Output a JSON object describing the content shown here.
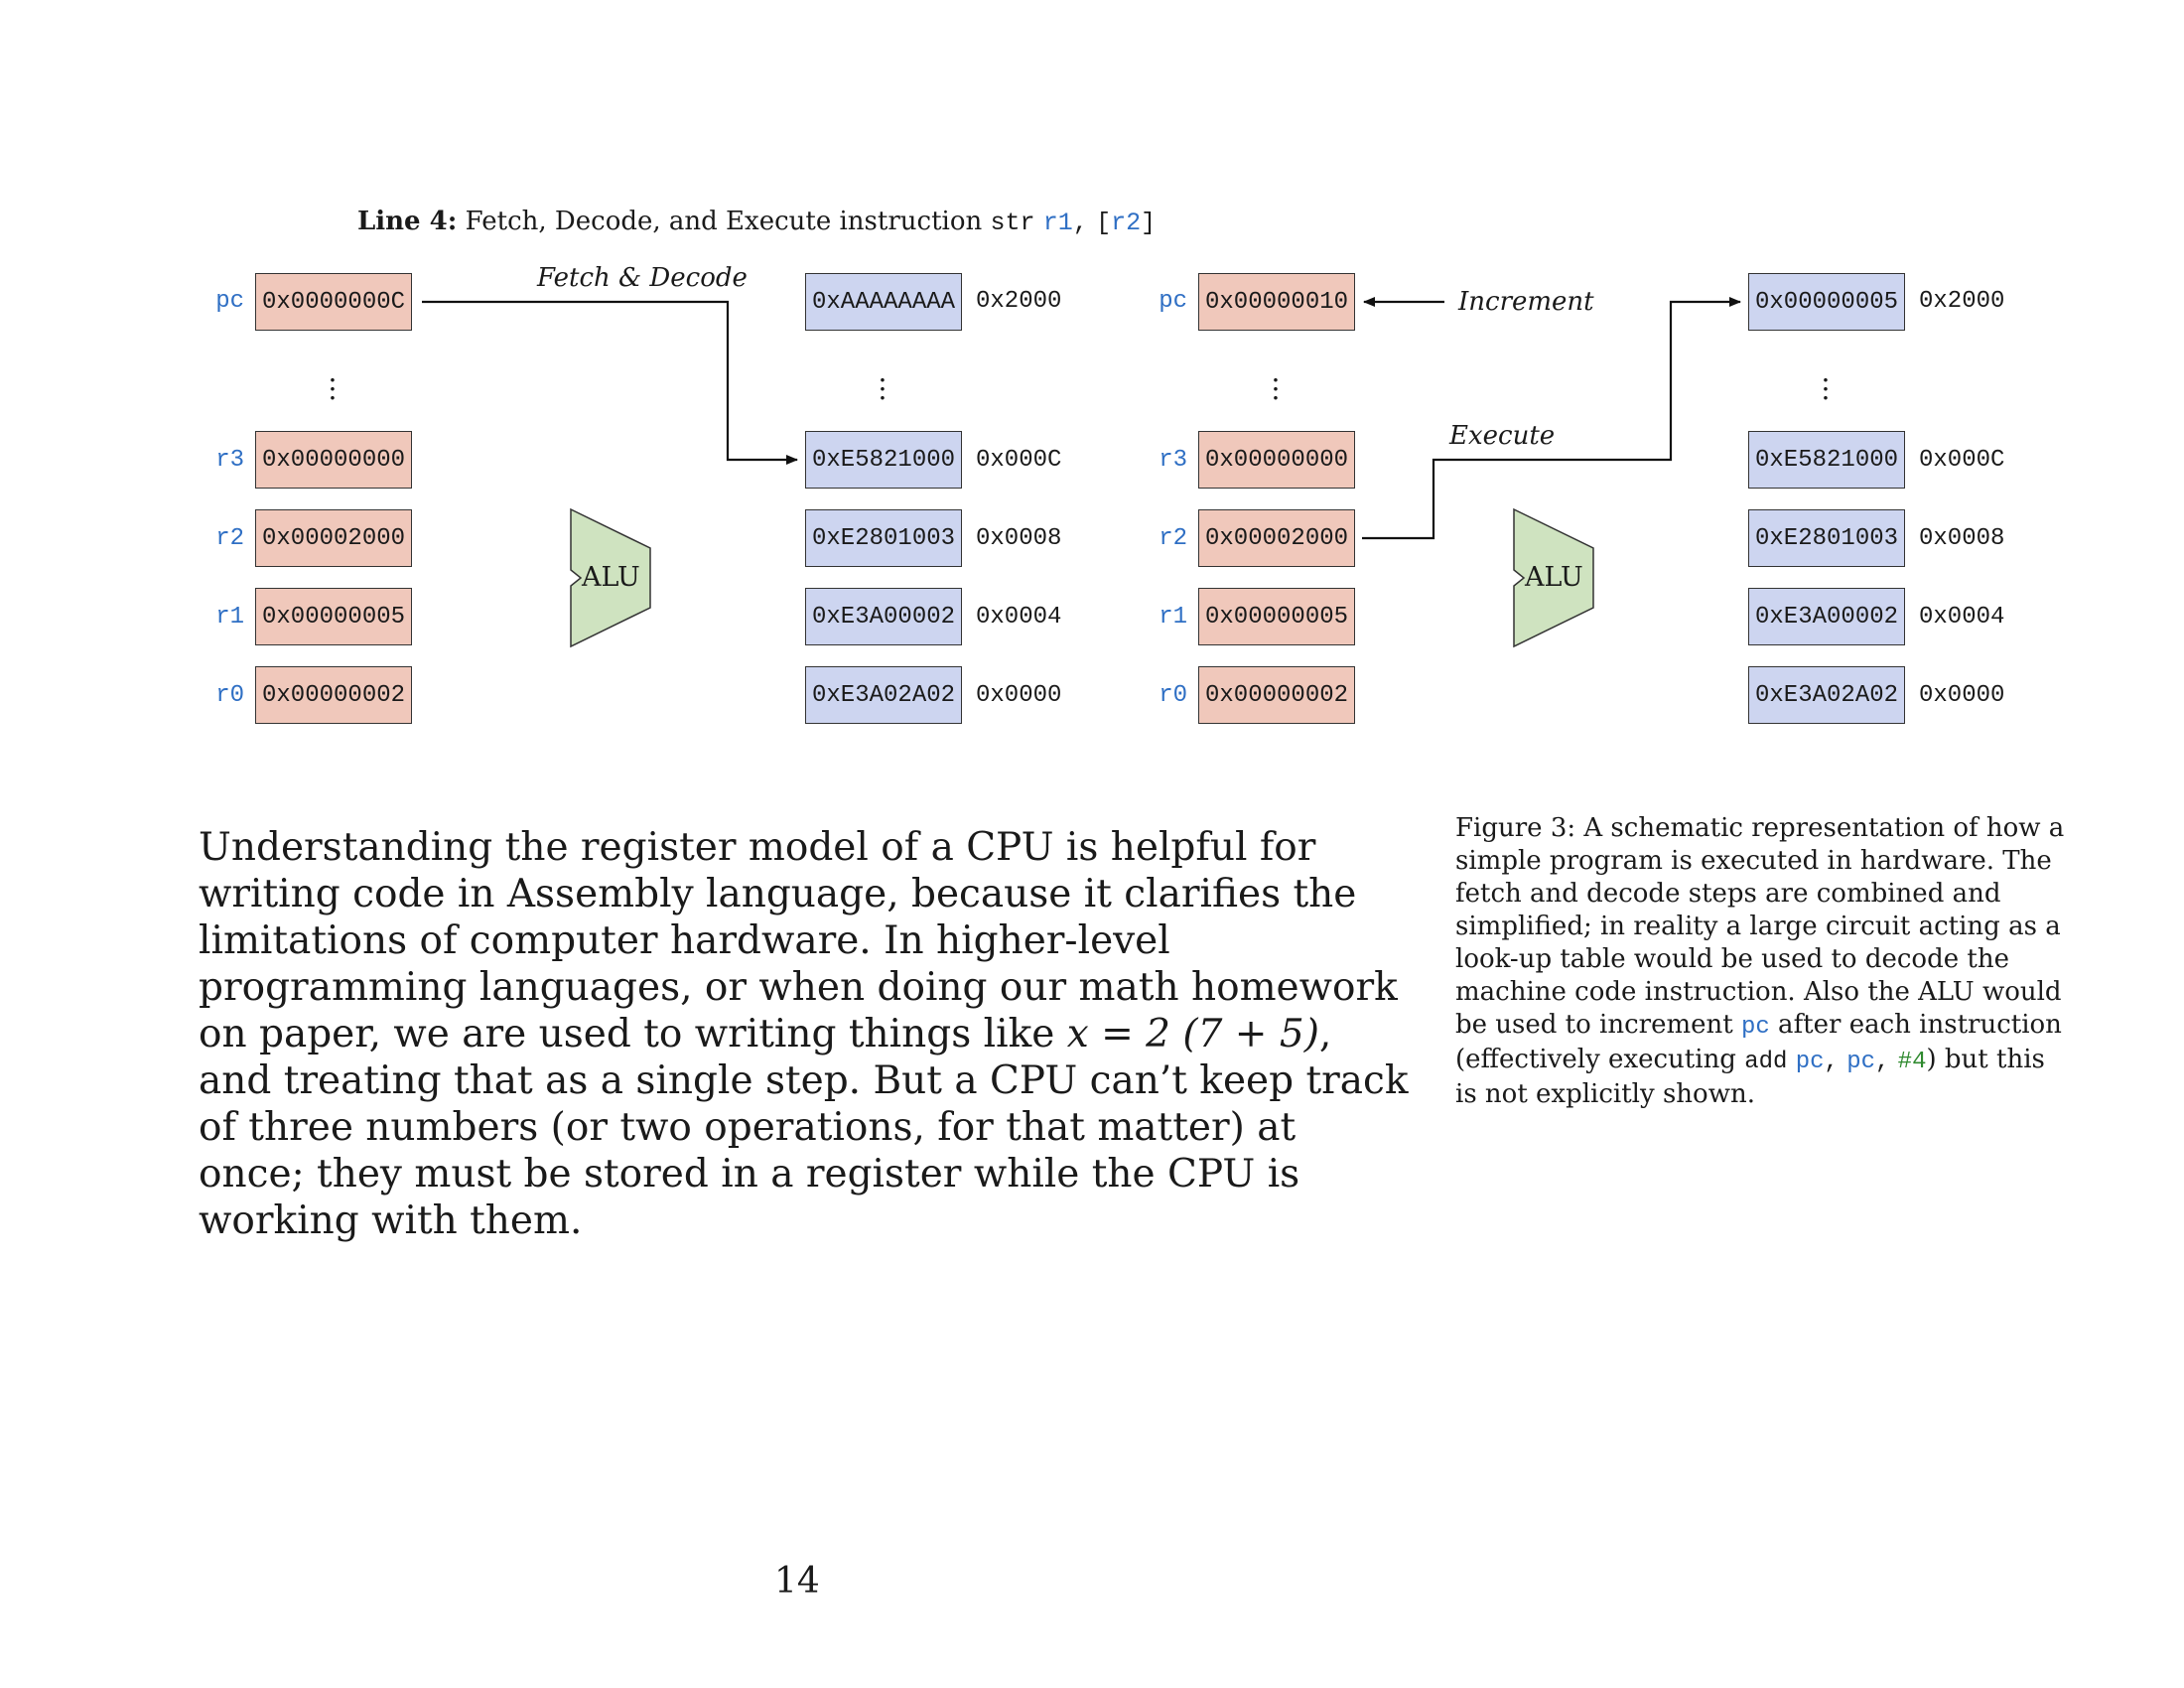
{
  "figure": {
    "title_bold": "Line 4:",
    "title_text": "Fetch, Decode, and Execute instruction",
    "title_instr": "str",
    "title_op1": "r1",
    "title_sep": ",",
    "title_br_open": "[",
    "title_op2": "r2",
    "title_br_close": "]",
    "alu_label": "ALU",
    "fetch_decode_label": "Fetch & Decode",
    "increment_label": "Increment",
    "execute_label": "Execute",
    "left": {
      "pc": {
        "label": "pc",
        "value": "0x0000000C"
      },
      "r3": {
        "label": "r3",
        "value": "0x00000000"
      },
      "r2": {
        "label": "r2",
        "value": "0x00002000"
      },
      "r1": {
        "label": "r1",
        "value": "0x00000005"
      },
      "r0": {
        "label": "r0",
        "value": "0x00000002"
      },
      "memory": [
        {
          "value": "0xAAAAAAAA",
          "address": "0x2000"
        },
        {
          "value": "0xE5821000",
          "address": "0x000C"
        },
        {
          "value": "0xE2801003",
          "address": "0x0008"
        },
        {
          "value": "0xE3A00002",
          "address": "0x0004"
        },
        {
          "value": "0xE3A02A02",
          "address": "0x0000"
        }
      ]
    },
    "right": {
      "pc": {
        "label": "pc",
        "value": "0x00000010"
      },
      "r3": {
        "label": "r3",
        "value": "0x00000000"
      },
      "r2": {
        "label": "r2",
        "value": "0x00002000"
      },
      "r1": {
        "label": "r1",
        "value": "0x00000005"
      },
      "r0": {
        "label": "r0",
        "value": "0x00000002"
      },
      "memory": [
        {
          "value": "0x00000005",
          "address": "0x2000"
        },
        {
          "value": "0xE5821000",
          "address": "0x000C"
        },
        {
          "value": "0xE2801003",
          "address": "0x0008"
        },
        {
          "value": "0xE3A00002",
          "address": "0x0004"
        },
        {
          "value": "0xE3A02A02",
          "address": "0x0000"
        }
      ]
    },
    "colors": {
      "register": "#f0c8bb",
      "memory": "#cdd5f0",
      "alu": "#cfe3c0",
      "code_keyword": "#2f6fc4",
      "code_literal": "#2f8a2f"
    }
  },
  "body": {
    "text_before": "Understanding the register model of a CPU is helpful for writing code in Assembly language, because it clarifies the limitations of computer hardware. In higher-level programming languages, or when doing our math homework on paper, we are used to writing things like ",
    "math": "x = 2 (7 + 5)",
    "text_after": ", and treating that as a single step. But a CPU can’t keep track of three numbers (or two operations, for that matter) at once; they must be stored in a register while the CPU is working with them."
  },
  "caption": {
    "part1": "Figure 3: A schematic representation of how a simple program is executed in hardware. The fetch and decode steps are combined and simplified; in reality a large circuit acting as a look-up table would be used to decode the machine code instruction. Also the ALU would be used to increment ",
    "pc1": "pc",
    "part2": " after each instruction (effectively executing ",
    "add": "add",
    "pc2": "pc",
    "comma1": ",",
    "pc3": "pc",
    "comma2": ",",
    "imm": "#4",
    "part3": ") but this is not explicitly shown."
  },
  "page_number": "14"
}
